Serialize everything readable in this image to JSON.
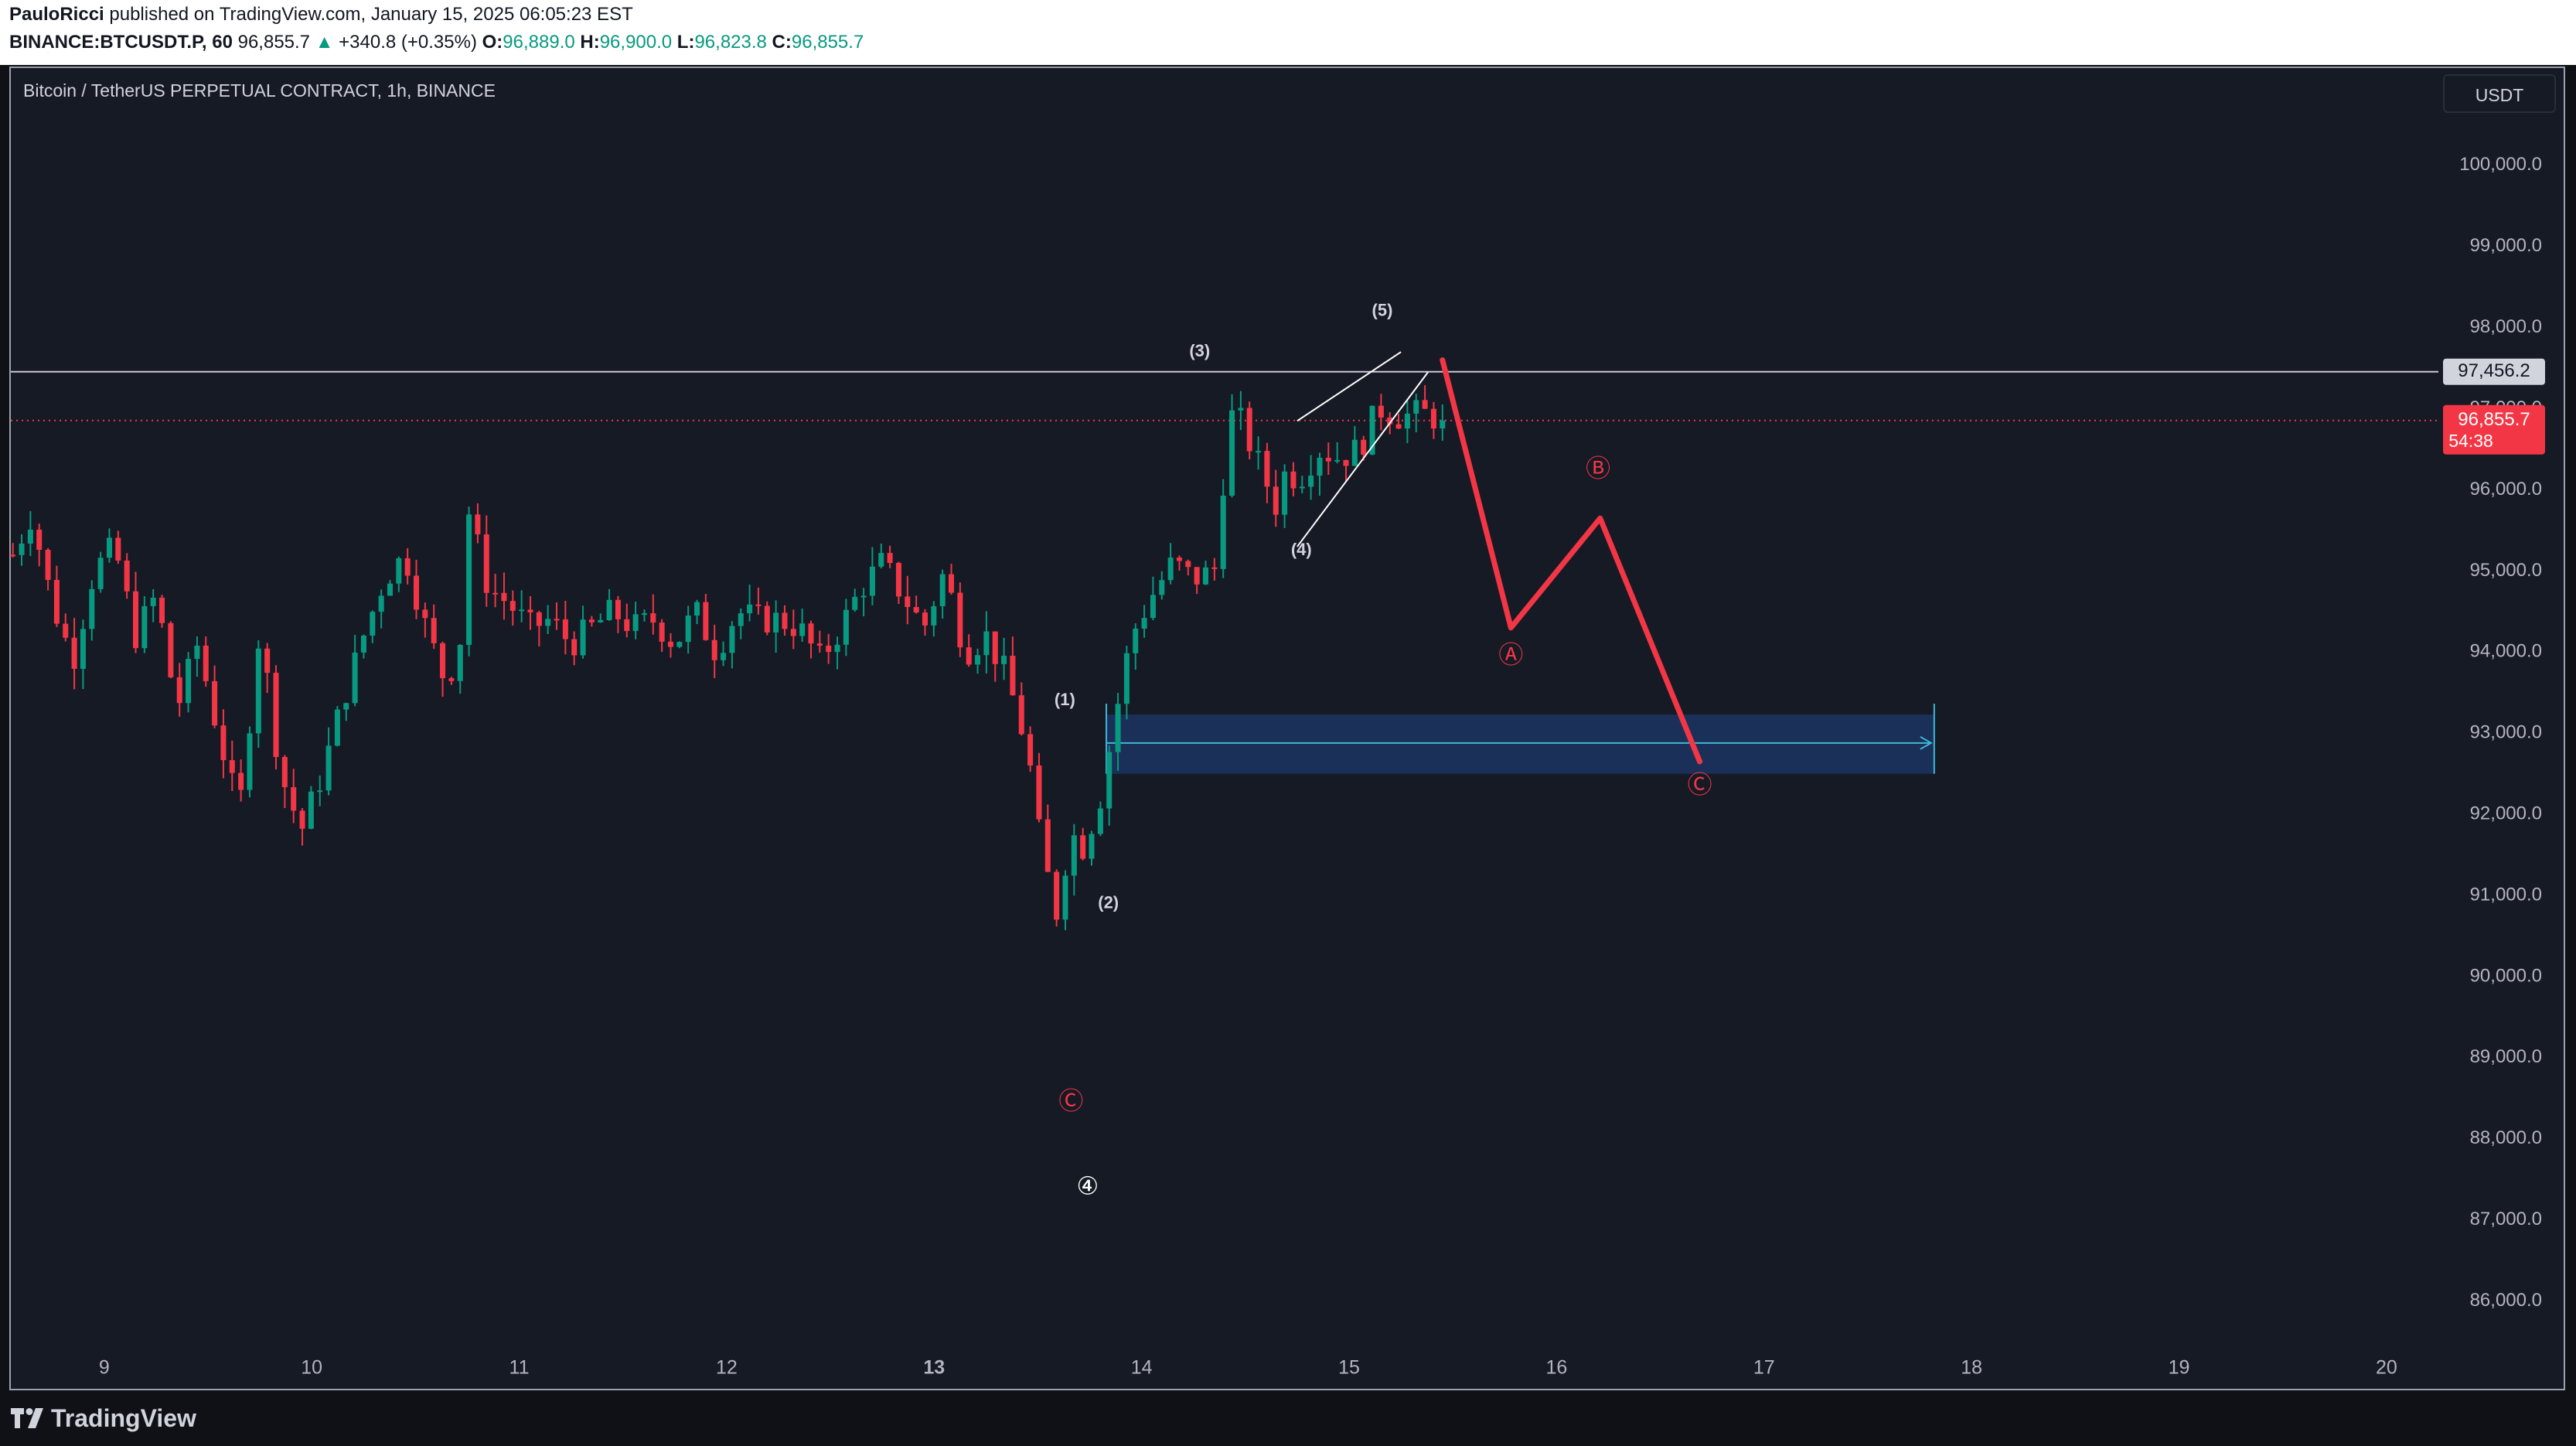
{
  "header": {
    "author": "PauloRicci",
    "published_text": " published on TradingView.com, January 15, 2025 06:05:23 EST",
    "symbol": "BINANCE:BTCUSDT.P, 60",
    "last": "96,855.7",
    "change": "+340.8 (+0.35%)",
    "o_label": "O:",
    "o_value": "96,889.0",
    "h_label": "H:",
    "h_value": "96,900.0",
    "l_label": "L:",
    "l_value": "96,823.8",
    "c_label": "C:",
    "c_value": "96,855.7"
  },
  "chart_title": "Bitcoin / TetherUS PERPETUAL CONTRACT, 1h, BINANCE",
  "currency": "USDT",
  "price_tags": {
    "level_line": "97,456.2",
    "last_price": "96,855.7",
    "countdown": "54:38"
  },
  "footer": {
    "brand": "TradingView"
  },
  "colors": {
    "up": "#089981",
    "down": "#f23645",
    "background": "#161a25",
    "projection": "#f23645",
    "zone": "#1e3a6e"
  },
  "chart_data": {
    "type": "candlestick",
    "title": "Bitcoin / TetherUS PERPETUAL CONTRACT, 1h, BINANCE",
    "interval": "1h",
    "ylim": [
      85300,
      101200
    ],
    "y_ticks": [
      "86,000.0",
      "87,000.0",
      "88,000.0",
      "89,000.0",
      "90,000.0",
      "91,000.0",
      "92,000.0",
      "93,000.0",
      "94,000.0",
      "95,000.0",
      "96,000.0",
      "97,000.0",
      "98,000.0",
      "99,000.0",
      "100,000.0"
    ],
    "y_tick_values": [
      86000,
      87000,
      88000,
      89000,
      90000,
      91000,
      92000,
      93000,
      94000,
      95000,
      96000,
      97000,
      98000,
      99000,
      100000
    ],
    "x_ticks": [
      "9",
      "10",
      "11",
      "12",
      "13",
      "14",
      "15",
      "16",
      "17",
      "18",
      "19",
      "20"
    ],
    "x_tick_days": [
      9,
      10,
      11,
      12,
      13,
      14,
      15,
      16,
      17,
      18,
      19,
      20
    ],
    "x_range_days": [
      8.55,
      20.25
    ],
    "bold_x_tick": "13",
    "horizontal_level": 97456.2,
    "last_price": 96855.7,
    "anchors": [
      [
        8.56,
        95200
      ],
      [
        8.65,
        95700
      ],
      [
        8.75,
        94600
      ],
      [
        8.85,
        93900
      ],
      [
        8.95,
        95000
      ],
      [
        9.05,
        95300
      ],
      [
        9.15,
        94200
      ],
      [
        9.25,
        94700
      ],
      [
        9.35,
        93300
      ],
      [
        9.45,
        94100
      ],
      [
        9.55,
        93000
      ],
      [
        9.65,
        92000
      ],
      [
        9.75,
        94300
      ],
      [
        9.85,
        92500
      ],
      [
        9.95,
        91800
      ],
      [
        10.05,
        92500
      ],
      [
        10.15,
        93400
      ],
      [
        10.25,
        94200
      ],
      [
        10.35,
        94900
      ],
      [
        10.45,
        95200
      ],
      [
        10.55,
        94300
      ],
      [
        10.65,
        93600
      ],
      [
        10.72,
        94200
      ],
      [
        10.75,
        95800
      ],
      [
        10.85,
        94800
      ],
      [
        10.95,
        94600
      ],
      [
        11.05,
        94300
      ],
      [
        11.15,
        94400
      ],
      [
        11.25,
        94100
      ],
      [
        11.35,
        94300
      ],
      [
        11.45,
        94500
      ],
      [
        11.55,
        94300
      ],
      [
        11.65,
        94400
      ],
      [
        11.75,
        94100
      ],
      [
        11.85,
        94500
      ],
      [
        11.95,
        94000
      ],
      [
        12.05,
        94500
      ],
      [
        12.15,
        94400
      ],
      [
        12.25,
        94400
      ],
      [
        12.35,
        94300
      ],
      [
        12.45,
        93900
      ],
      [
        12.55,
        94300
      ],
      [
        12.65,
        94800
      ],
      [
        12.75,
        95100
      ],
      [
        12.85,
        94700
      ],
      [
        12.95,
        94300
      ],
      [
        13.05,
        95000
      ],
      [
        13.15,
        94000
      ],
      [
        13.25,
        94200
      ],
      [
        13.35,
        93700
      ],
      [
        13.45,
        92800
      ],
      [
        13.52,
        91500
      ],
      [
        13.6,
        90700
      ],
      [
        13.65,
        91800
      ],
      [
        13.72,
        91600
      ],
      [
        13.8,
        92200
      ],
      [
        13.88,
        93300
      ],
      [
        13.95,
        94200
      ],
      [
        14.05,
        94700
      ],
      [
        14.15,
        95100
      ],
      [
        14.25,
        94900
      ],
      [
        14.35,
        95000
      ],
      [
        14.42,
        96800
      ],
      [
        14.45,
        97000
      ],
      [
        14.55,
        96400
      ],
      [
        14.65,
        95800
      ],
      [
        14.7,
        96300
      ],
      [
        14.75,
        96100
      ],
      [
        14.85,
        96500
      ],
      [
        14.95,
        96400
      ],
      [
        15.05,
        96500
      ],
      [
        15.1,
        96800
      ],
      [
        15.15,
        97000
      ],
      [
        15.25,
        96900
      ],
      [
        15.35,
        96950
      ],
      [
        15.45,
        96860
      ]
    ],
    "candle_count": 164,
    "waves": [
      {
        "label": "(1)",
        "day": 13.63,
        "price": 93400
      },
      {
        "label": "(2)",
        "day": 13.84,
        "price": 90900
      },
      {
        "label": "(3)",
        "day": 14.28,
        "price": 97700
      },
      {
        "label": "(4)",
        "day": 14.77,
        "price": 95250
      },
      {
        "label": "(5)",
        "day": 15.16,
        "price": 98200
      }
    ],
    "corrective_labels": [
      {
        "label": "Ⓒ",
        "day": 13.66,
        "price": 88450,
        "color": "#f23645"
      },
      {
        "label": "④",
        "day": 13.74,
        "price": 87400,
        "color": "#ffffff"
      },
      {
        "label": "Ⓐ",
        "day": 15.78,
        "price": 93950,
        "color": "#f23645"
      },
      {
        "label": "Ⓑ",
        "day": 16.2,
        "price": 96250,
        "color": "#f23645"
      },
      {
        "label": "Ⓒ",
        "day": 16.69,
        "price": 92350,
        "color": "#f23645"
      }
    ],
    "projection_path": [
      [
        15.45,
        97600
      ],
      [
        15.78,
        94300
      ],
      [
        16.21,
        95650
      ],
      [
        16.69,
        92650
      ]
    ],
    "wedge_upper": [
      [
        14.75,
        96850
      ],
      [
        15.25,
        97700
      ]
    ],
    "wedge_lower": [
      [
        14.75,
        95300
      ],
      [
        15.38,
        97450
      ]
    ],
    "target_zone": {
      "x0": 13.83,
      "x1": 17.82,
      "top": 93230,
      "bottom": 92500,
      "mid": 92880
    }
  }
}
